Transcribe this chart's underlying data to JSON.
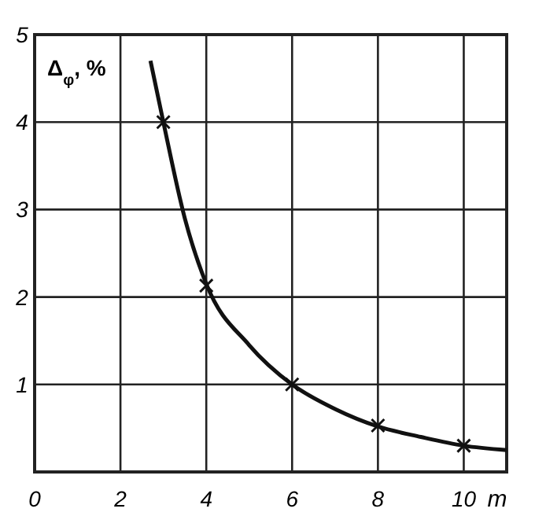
{
  "chart_data": {
    "type": "line",
    "xlabel": "m",
    "ylabel": "Δ$_{φ}$, %",
    "xlim": [
      0,
      11
    ],
    "ylim": [
      0,
      5
    ],
    "xticks": [
      0,
      2,
      4,
      6,
      8,
      10
    ],
    "yticks": [
      1,
      2,
      3,
      4,
      5
    ],
    "grid": true,
    "series": [
      {
        "color": "#111111",
        "marker": "none",
        "x": [
          2.7,
          3,
          3.5,
          4,
          5,
          6,
          7,
          8,
          9,
          10,
          11
        ],
        "values": [
          4.7,
          4.0,
          2.9,
          2.15,
          1.45,
          1.0,
          0.72,
          0.52,
          0.4,
          0.3,
          0.25
        ]
      },
      {
        "type": "scatter",
        "color": "#111111",
        "marker": "cross",
        "x": [
          3,
          4,
          6,
          8,
          10
        ],
        "values": [
          4,
          2.13,
          1,
          0.53,
          0.3
        ]
      }
    ]
  }
}
